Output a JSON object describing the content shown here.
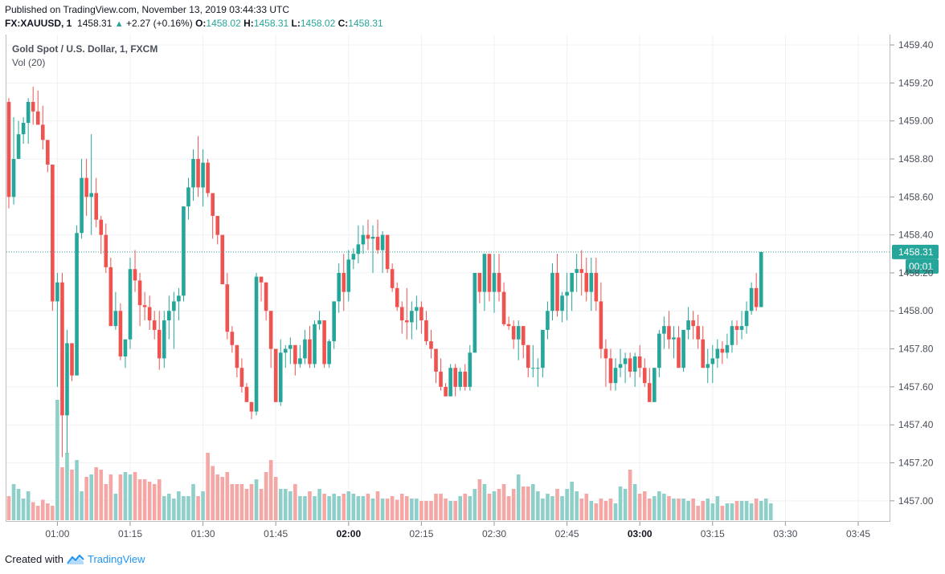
{
  "header": {
    "published": "Published on TradingView.com, November 13, 2019 03:44:33 UTC",
    "symbol": "FX:XAUUSD, 1",
    "last": "1458.31",
    "arrow": "▲",
    "change": "+2.27 (+0.16%)",
    "o_label": "O:",
    "o_val": "1458.02",
    "h_label": "H:",
    "h_val": "1458.31",
    "l_label": "L:",
    "l_val": "1458.02",
    "c_label": "C:",
    "c_val": "1458.31"
  },
  "legend": {
    "title": "Gold Spot / U.S. Dollar, 1, FXCM",
    "volume": "Vol (20)"
  },
  "badges": {
    "price": "1458.31",
    "countdown": "00:01"
  },
  "footer": {
    "created": "Created with",
    "brand": "TradingView"
  },
  "colors": {
    "up": "#26a69a",
    "down": "#ef5350",
    "vol_up": "#8fcfc9",
    "vol_down": "#f4a7a5",
    "grid": "#eef1f5"
  },
  "chart_data": {
    "type": "candlestick",
    "y_ticks": [
      "1459.40",
      "1459.20",
      "1459.00",
      "1458.80",
      "1458.60",
      "1458.40",
      "1458.20",
      "1458.00",
      "1457.80",
      "1457.60",
      "1457.40",
      "1457.20",
      "1457.00"
    ],
    "ylim": [
      1456.88,
      1459.49
    ],
    "x_ticks": [
      {
        "label": "01:00",
        "min": 54
      },
      {
        "label": "01:15",
        "min": 69
      },
      {
        "label": "01:30",
        "min": 84
      },
      {
        "label": "01:45",
        "min": 99
      },
      {
        "label": "02:00",
        "min": 114,
        "bold": true
      },
      {
        "label": "02:15",
        "min": 129
      },
      {
        "label": "02:30",
        "min": 144
      },
      {
        "label": "02:45",
        "min": 159
      },
      {
        "label": "03:00",
        "min": 174,
        "bold": true
      },
      {
        "label": "03:15",
        "min": 189
      },
      {
        "label": "03:30",
        "min": 204
      },
      {
        "label": "03:45",
        "min": 219
      }
    ],
    "last_price": 1458.31,
    "candles_ohlc": [
      [
        1459.1,
        1459.12,
        1458.54,
        1458.6
      ],
      [
        1458.6,
        1459.02,
        1458.56,
        1458.8
      ],
      [
        1458.8,
        1459.0,
        1458.8,
        1458.93
      ],
      [
        1458.93,
        1459.02,
        1458.88,
        1458.99
      ],
      [
        1458.99,
        1459.12,
        1458.88,
        1459.1
      ],
      [
        1459.1,
        1459.18,
        1458.98,
        1459.05
      ],
      [
        1459.05,
        1459.16,
        1458.98,
        1458.98
      ],
      [
        1458.98,
        1459.08,
        1458.85,
        1458.9
      ],
      [
        1458.9,
        1458.9,
        1458.73,
        1458.77
      ],
      [
        1458.77,
        1458.77,
        1458.0,
        1458.05
      ],
      [
        1458.05,
        1458.2,
        1457.6,
        1458.15
      ],
      [
        1458.15,
        1458.2,
        1457.23,
        1457.45
      ],
      [
        1457.45,
        1457.9,
        1457.25,
        1457.83
      ],
      [
        1457.83,
        1457.83,
        1457.63,
        1457.66
      ],
      [
        1457.66,
        1458.45,
        1457.66,
        1458.41
      ],
      [
        1458.41,
        1458.8,
        1458.38,
        1458.7
      ],
      [
        1458.7,
        1458.8,
        1458.5,
        1458.6
      ],
      [
        1458.6,
        1458.93,
        1458.4,
        1458.62
      ],
      [
        1458.62,
        1458.7,
        1458.44,
        1458.48
      ],
      [
        1458.48,
        1458.5,
        1458.3,
        1458.4
      ],
      [
        1458.4,
        1458.46,
        1458.2,
        1458.23
      ],
      [
        1458.23,
        1458.28,
        1457.95,
        1457.92
      ],
      [
        1457.92,
        1458.1,
        1457.9,
        1458.0
      ],
      [
        1458.0,
        1458.04,
        1457.74,
        1457.76
      ],
      [
        1457.76,
        1457.85,
        1457.7,
        1457.85
      ],
      [
        1457.85,
        1458.28,
        1457.8,
        1458.22
      ],
      [
        1458.22,
        1458.32,
        1458.1,
        1458.16
      ],
      [
        1458.16,
        1458.2,
        1457.92,
        1458.03
      ],
      [
        1458.03,
        1458.1,
        1457.95,
        1458.02
      ],
      [
        1458.02,
        1458.08,
        1457.9,
        1457.95
      ],
      [
        1457.95,
        1458.0,
        1457.85,
        1457.9
      ],
      [
        1457.9,
        1458.0,
        1457.69,
        1457.75
      ],
      [
        1457.75,
        1458.0,
        1457.7,
        1457.95
      ],
      [
        1457.95,
        1458.08,
        1457.85,
        1458.0
      ],
      [
        1458.0,
        1458.1,
        1457.8,
        1458.05
      ],
      [
        1458.05,
        1458.12,
        1457.95,
        1458.08
      ],
      [
        1458.08,
        1458.55,
        1458.05,
        1458.55
      ],
      [
        1458.55,
        1458.7,
        1458.48,
        1458.65
      ],
      [
        1458.65,
        1458.85,
        1458.58,
        1458.8
      ],
      [
        1458.8,
        1458.92,
        1458.6,
        1458.65
      ],
      [
        1458.65,
        1458.85,
        1458.55,
        1458.78
      ],
      [
        1458.78,
        1458.8,
        1458.6,
        1458.62
      ],
      [
        1458.62,
        1458.62,
        1458.38,
        1458.5
      ],
      [
        1458.5,
        1458.5,
        1458.35,
        1458.4
      ],
      [
        1458.4,
        1458.4,
        1458.14,
        1458.14
      ],
      [
        1458.14,
        1458.2,
        1457.85,
        1457.89
      ],
      [
        1457.89,
        1457.92,
        1457.78,
        1457.82
      ],
      [
        1457.82,
        1457.82,
        1457.65,
        1457.7
      ],
      [
        1457.7,
        1457.75,
        1457.57,
        1457.6
      ],
      [
        1457.6,
        1457.62,
        1457.52,
        1457.52
      ],
      [
        1457.52,
        1457.52,
        1457.43,
        1457.47
      ],
      [
        1457.47,
        1458.2,
        1457.45,
        1458.18
      ],
      [
        1458.18,
        1458.18,
        1458.05,
        1458.15
      ],
      [
        1458.15,
        1458.15,
        1457.95,
        1458.0
      ],
      [
        1458.0,
        1458.0,
        1457.7,
        1457.8
      ],
      [
        1457.8,
        1457.8,
        1457.52,
        1457.52
      ],
      [
        1457.52,
        1457.85,
        1457.5,
        1457.78
      ],
      [
        1457.78,
        1457.82,
        1457.7,
        1457.8
      ],
      [
        1457.8,
        1457.86,
        1457.72,
        1457.82
      ],
      [
        1457.82,
        1457.82,
        1457.66,
        1457.72
      ],
      [
        1457.72,
        1457.82,
        1457.7,
        1457.75
      ],
      [
        1457.75,
        1457.9,
        1457.72,
        1457.85
      ],
      [
        1457.85,
        1457.92,
        1457.7,
        1457.72
      ],
      [
        1457.72,
        1457.95,
        1457.7,
        1457.93
      ],
      [
        1457.93,
        1458.0,
        1457.9,
        1457.95
      ],
      [
        1457.95,
        1457.95,
        1457.7,
        1457.72
      ],
      [
        1457.72,
        1457.85,
        1457.7,
        1457.84
      ],
      [
        1457.84,
        1458.05,
        1457.8,
        1458.05
      ],
      [
        1458.05,
        1458.25,
        1457.99,
        1458.2
      ],
      [
        1458.2,
        1458.3,
        1458.0,
        1458.1
      ],
      [
        1458.1,
        1458.32,
        1458.05,
        1458.27
      ],
      [
        1458.27,
        1458.33,
        1458.22,
        1458.3
      ],
      [
        1458.3,
        1458.45,
        1458.25,
        1458.35
      ],
      [
        1458.35,
        1458.45,
        1458.3,
        1458.4
      ],
      [
        1458.4,
        1458.48,
        1458.32,
        1458.38
      ],
      [
        1458.38,
        1458.45,
        1458.2,
        1458.39
      ],
      [
        1458.39,
        1458.48,
        1458.3,
        1458.32
      ],
      [
        1458.32,
        1458.42,
        1458.2,
        1458.4
      ],
      [
        1458.4,
        1458.4,
        1458.2,
        1458.22
      ],
      [
        1458.22,
        1458.25,
        1458.1,
        1458.12
      ],
      [
        1458.12,
        1458.15,
        1458.0,
        1458.02
      ],
      [
        1458.02,
        1458.05,
        1457.88,
        1457.95
      ],
      [
        1457.95,
        1458.12,
        1457.85,
        1457.94
      ],
      [
        1457.94,
        1458.05,
        1457.85,
        1458.0
      ],
      [
        1458.0,
        1458.08,
        1457.9,
        1458.02
      ],
      [
        1458.02,
        1458.05,
        1457.88,
        1457.95
      ],
      [
        1457.95,
        1458.0,
        1457.82,
        1457.84
      ],
      [
        1457.84,
        1457.9,
        1457.75,
        1457.8
      ],
      [
        1457.8,
        1457.8,
        1457.62,
        1457.68
      ],
      [
        1457.68,
        1457.75,
        1457.58,
        1457.6
      ],
      [
        1457.6,
        1457.62,
        1457.55,
        1457.55
      ],
      [
        1457.55,
        1457.72,
        1457.55,
        1457.7
      ],
      [
        1457.7,
        1457.72,
        1457.55,
        1457.6
      ],
      [
        1457.6,
        1457.7,
        1457.58,
        1457.68
      ],
      [
        1457.68,
        1457.72,
        1457.58,
        1457.6
      ],
      [
        1457.6,
        1457.82,
        1457.58,
        1457.78
      ],
      [
        1457.78,
        1458.2,
        1457.78,
        1458.2
      ],
      [
        1458.2,
        1458.2,
        1458.04,
        1458.1
      ],
      [
        1458.1,
        1458.3,
        1458.0,
        1458.3
      ],
      [
        1458.3,
        1458.3,
        1458.05,
        1458.1
      ],
      [
        1458.1,
        1458.3,
        1457.99,
        1458.2
      ],
      [
        1458.2,
        1458.3,
        1458.05,
        1458.1
      ],
      [
        1458.1,
        1458.15,
        1457.92,
        1457.93
      ],
      [
        1457.93,
        1457.97,
        1457.9,
        1457.92
      ],
      [
        1457.92,
        1457.95,
        1457.8,
        1457.85
      ],
      [
        1457.85,
        1457.95,
        1457.74,
        1457.92
      ],
      [
        1457.92,
        1457.92,
        1457.75,
        1457.82
      ],
      [
        1457.82,
        1457.82,
        1457.65,
        1457.7
      ],
      [
        1457.7,
        1457.82,
        1457.65,
        1457.7
      ],
      [
        1457.7,
        1457.75,
        1457.6,
        1457.7
      ],
      [
        1457.7,
        1457.9,
        1457.65,
        1457.9
      ],
      [
        1457.9,
        1458.05,
        1457.85,
        1458.0
      ],
      [
        1458.0,
        1458.25,
        1457.95,
        1458.2
      ],
      [
        1458.2,
        1458.3,
        1457.97,
        1458.0
      ],
      [
        1458.0,
        1458.1,
        1457.94,
        1458.08
      ],
      [
        1458.08,
        1458.2,
        1457.95,
        1458.1
      ],
      [
        1458.1,
        1458.2,
        1458.0,
        1458.2
      ],
      [
        1458.2,
        1458.3,
        1458.1,
        1458.22
      ],
      [
        1458.22,
        1458.32,
        1458.08,
        1458.2
      ],
      [
        1458.2,
        1458.28,
        1458.05,
        1458.1
      ],
      [
        1458.1,
        1458.28,
        1458.0,
        1458.2
      ],
      [
        1458.2,
        1458.28,
        1458.0,
        1458.05
      ],
      [
        1458.05,
        1458.15,
        1457.75,
        1457.8
      ],
      [
        1457.8,
        1457.85,
        1457.6,
        1457.75
      ],
      [
        1457.75,
        1457.8,
        1457.58,
        1457.62
      ],
      [
        1457.62,
        1457.75,
        1457.58,
        1457.7
      ],
      [
        1457.7,
        1457.8,
        1457.65,
        1457.72
      ],
      [
        1457.72,
        1457.78,
        1457.62,
        1457.75
      ],
      [
        1457.75,
        1457.78,
        1457.65,
        1457.68
      ],
      [
        1457.68,
        1457.78,
        1457.6,
        1457.76
      ],
      [
        1457.76,
        1457.82,
        1457.65,
        1457.7
      ],
      [
        1457.7,
        1457.75,
        1457.6,
        1457.62
      ],
      [
        1457.62,
        1457.7,
        1457.52,
        1457.52
      ],
      [
        1457.52,
        1457.7,
        1457.52,
        1457.7
      ],
      [
        1457.7,
        1457.9,
        1457.65,
        1457.88
      ],
      [
        1457.88,
        1457.97,
        1457.8,
        1457.92
      ],
      [
        1457.92,
        1458.0,
        1457.8,
        1457.85
      ],
      [
        1457.85,
        1457.92,
        1457.75,
        1457.86
      ],
      [
        1457.86,
        1457.92,
        1457.75,
        1457.7
      ],
      [
        1457.7,
        1457.9,
        1457.68,
        1457.9
      ],
      [
        1457.9,
        1458.02,
        1457.85,
        1457.95
      ],
      [
        1457.95,
        1458.0,
        1457.85,
        1457.92
      ],
      [
        1457.92,
        1457.98,
        1457.8,
        1457.85
      ],
      [
        1457.85,
        1457.92,
        1457.72,
        1457.7
      ],
      [
        1457.7,
        1457.8,
        1457.62,
        1457.72
      ],
      [
        1457.72,
        1457.82,
        1457.62,
        1457.75
      ],
      [
        1457.75,
        1457.85,
        1457.7,
        1457.8
      ],
      [
        1457.8,
        1457.84,
        1457.72,
        1457.78
      ],
      [
        1457.78,
        1457.88,
        1457.75,
        1457.82
      ],
      [
        1457.82,
        1457.95,
        1457.78,
        1457.92
      ],
      [
        1457.92,
        1457.95,
        1457.82,
        1457.9
      ],
      [
        1457.9,
        1458.0,
        1457.85,
        1457.92
      ],
      [
        1457.92,
        1458.05,
        1457.88,
        1458.0
      ],
      [
        1458.0,
        1458.15,
        1457.98,
        1458.12
      ],
      [
        1458.12,
        1458.2,
        1458.0,
        1458.02
      ],
      [
        1458.02,
        1458.31,
        1458.02,
        1458.31
      ]
    ],
    "volume": [
      20,
      30,
      26,
      18,
      24,
      15,
      12,
      17,
      14,
      12,
      100,
      44,
      56,
      42,
      50,
      24,
      36,
      38,
      44,
      42,
      30,
      38,
      22,
      38,
      40,
      38,
      40,
      34,
      34,
      32,
      30,
      34,
      20,
      22,
      18,
      24,
      20,
      20,
      30,
      20,
      24,
      56,
      45,
      38,
      36,
      40,
      30,
      30,
      30,
      26,
      30,
      34,
      26,
      40,
      50,
      36,
      26,
      26,
      24,
      30,
      20,
      20,
      24,
      20,
      26,
      22,
      20,
      22,
      20,
      22,
      24,
      22,
      20,
      20,
      22,
      18,
      24,
      18,
      18,
      20,
      17,
      22,
      20,
      18,
      18,
      16,
      16,
      16,
      22,
      22,
      18,
      16,
      16,
      20,
      22,
      20,
      26,
      34,
      30,
      22,
      24,
      26,
      30,
      20,
      26,
      38,
      28,
      28,
      30,
      24,
      18,
      22,
      20,
      26,
      20,
      26,
      32,
      24,
      18,
      22,
      16,
      14,
      18,
      16,
      18,
      14,
      28,
      26,
      42,
      30,
      22,
      24,
      18,
      20,
      24,
      22,
      20,
      18,
      18,
      18,
      16,
      18,
      12,
      16,
      18,
      14,
      20,
      12,
      14,
      14,
      16,
      16,
      16,
      14,
      18,
      16,
      18,
      14
    ]
  }
}
